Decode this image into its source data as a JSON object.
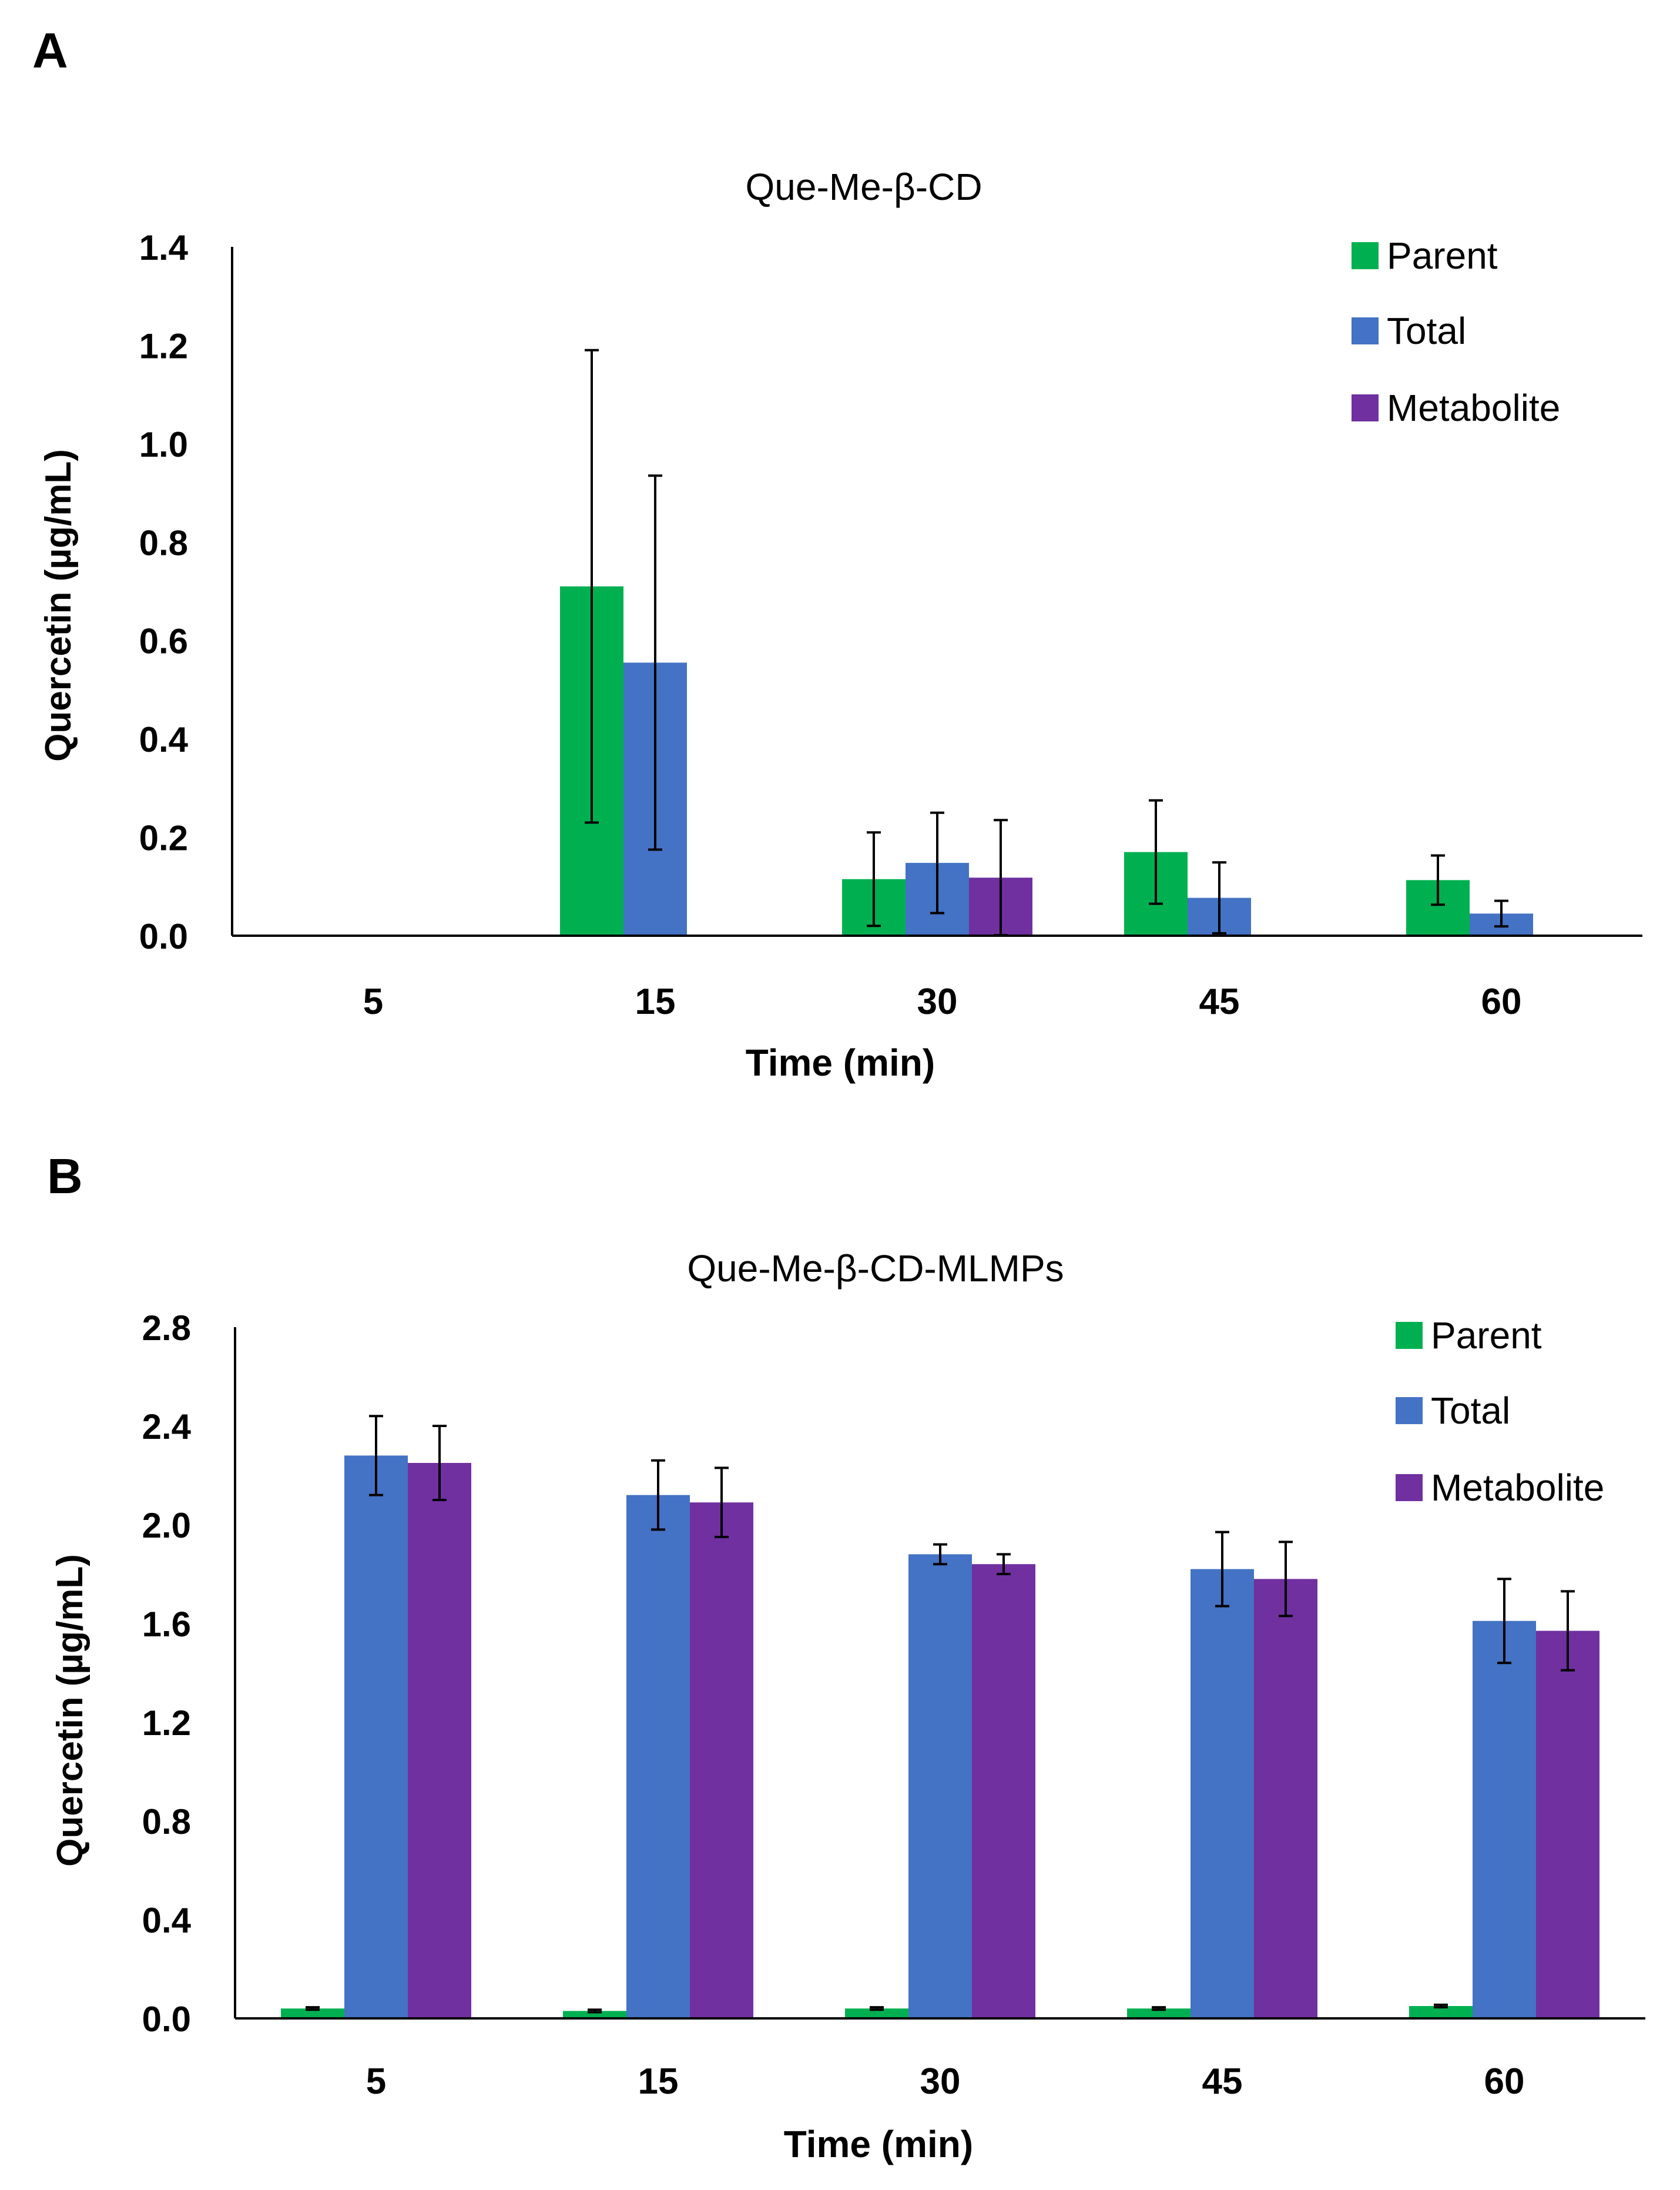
{
  "colors": {
    "parent": "#00B050",
    "total": "#4472C4",
    "metabolite": "#7030A0",
    "axis": "#000000",
    "text": "#000000"
  },
  "chart_data": [
    {
      "panel_label": "A",
      "type": "bar",
      "title": "Que-Me-β-CD",
      "xlabel": "Time (min)",
      "ylabel": "Quercetin (µg/mL)",
      "ylim": [
        0,
        1.4
      ],
      "yticks": [
        "0.0",
        "0.2",
        "0.4",
        "0.6",
        "0.8",
        "1.0",
        "1.2",
        "1.4"
      ],
      "categories": [
        "5",
        "15",
        "30",
        "45",
        "60"
      ],
      "legend_position": "top-right",
      "grid": false,
      "series": [
        {
          "name": "Parent",
          "color_key": "parent",
          "values": [
            0,
            0.71,
            0.115,
            0.17,
            0.113
          ],
          "errors": [
            0,
            0.48,
            0.095,
            0.105,
            0.05
          ]
        },
        {
          "name": "Total",
          "color_key": "total",
          "values": [
            0,
            0.555,
            0.148,
            0.077,
            0.045
          ],
          "errors": [
            0,
            0.38,
            0.102,
            0.072,
            0.026
          ]
        },
        {
          "name": "Metabolite",
          "color_key": "metabolite",
          "values": [
            0,
            0,
            0.118,
            0,
            0
          ],
          "errors": [
            0,
            0,
            0.117,
            0,
            0
          ]
        }
      ]
    },
    {
      "panel_label": "B",
      "type": "bar",
      "title": "Que-Me-β-CD-MLMPs",
      "xlabel": "Time (min)",
      "ylabel": "Quercetin (µg/mL)",
      "ylim": [
        0,
        2.8
      ],
      "yticks": [
        "0.0",
        "0.4",
        "0.8",
        "1.2",
        "1.6",
        "2.0",
        "2.4",
        "2.8"
      ],
      "categories": [
        "5",
        "15",
        "30",
        "45",
        "60"
      ],
      "legend_position": "top-right",
      "grid": false,
      "series": [
        {
          "name": "Parent",
          "color_key": "parent",
          "values": [
            0.04,
            0.03,
            0.04,
            0.04,
            0.05
          ],
          "errors": [
            0.005,
            0.005,
            0.005,
            0.005,
            0.005
          ]
        },
        {
          "name": "Total",
          "color_key": "total",
          "values": [
            2.28,
            2.12,
            1.88,
            1.82,
            1.61
          ],
          "errors": [
            0.16,
            0.14,
            0.04,
            0.15,
            0.17
          ]
        },
        {
          "name": "Metabolite",
          "color_key": "metabolite",
          "values": [
            2.25,
            2.09,
            1.84,
            1.78,
            1.57
          ],
          "errors": [
            0.15,
            0.14,
            0.04,
            0.15,
            0.16
          ]
        }
      ]
    }
  ]
}
